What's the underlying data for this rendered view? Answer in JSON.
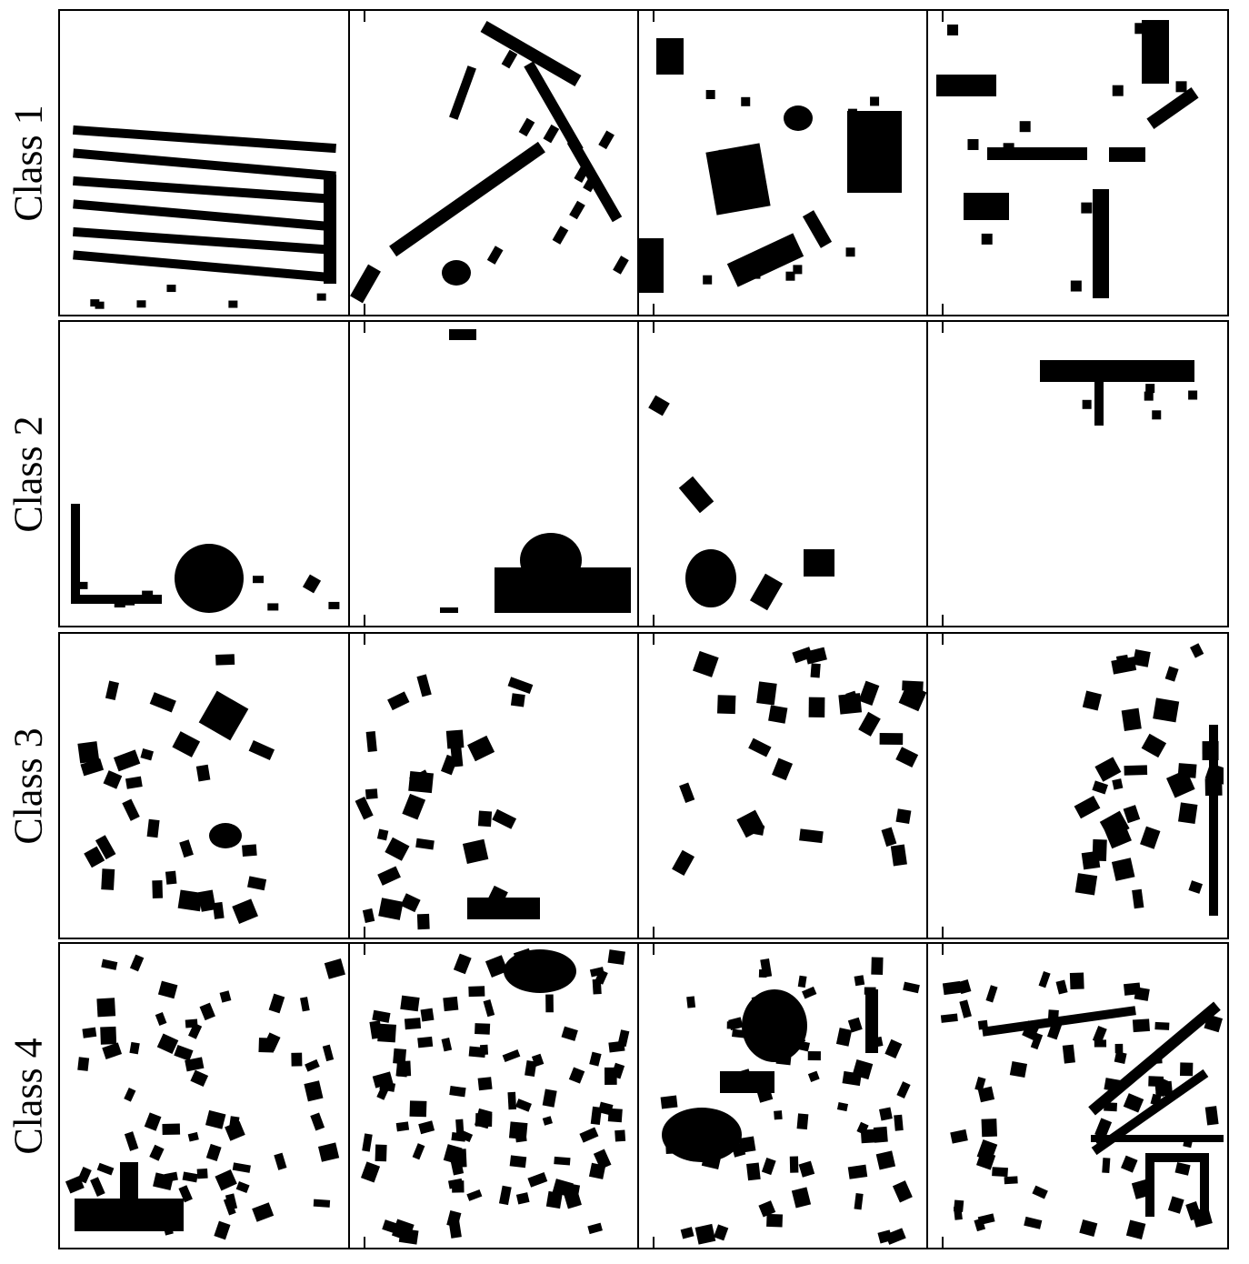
{
  "figure": {
    "rows": [
      {
        "label": "Class 1"
      },
      {
        "label": "Class 2"
      },
      {
        "label": "Class 3"
      },
      {
        "label": "Class 4"
      }
    ],
    "columns": 4,
    "foreground_color": "#000000",
    "background_color": "#ffffff"
  }
}
